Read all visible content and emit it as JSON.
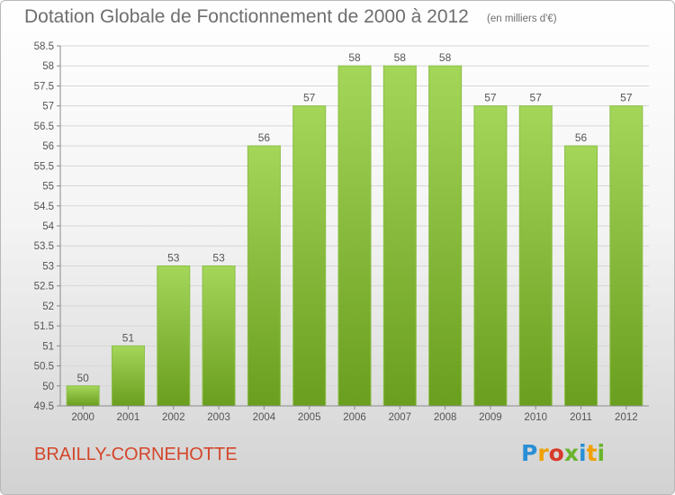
{
  "header": {
    "title": "Dotation Globale de Fonctionnement de 2000 à 2012",
    "unit": "(en milliers d'€)"
  },
  "footer": {
    "commune": "BRAILLY-CORNEHOTTE",
    "logo_text": "Proxiti"
  },
  "colors": {
    "bar_top": "#a4d65a",
    "bar_bottom": "#6a9e1e",
    "text": "#6e6e6e",
    "commune": "#d4462a"
  },
  "chart_data": {
    "type": "bar",
    "title": "Dotation Globale de Fonctionnement de 2000 à 2012",
    "subtitle": "(en milliers d'€)",
    "categories": [
      "2000",
      "2001",
      "2002",
      "2003",
      "2004",
      "2005",
      "2006",
      "2007",
      "2008",
      "2009",
      "2010",
      "2011",
      "2012"
    ],
    "values": [
      50,
      51,
      53,
      53,
      56,
      57,
      58,
      58,
      58,
      57,
      57,
      56,
      57
    ],
    "data_labels": [
      "50",
      "51",
      "53",
      "53",
      "56",
      "57",
      "58",
      "58",
      "58",
      "57",
      "57",
      "56",
      "57"
    ],
    "yticks": [
      "49.5",
      "50",
      "50.5",
      "51",
      "51.5",
      "52",
      "52.5",
      "53",
      "53.5",
      "54",
      "54.5",
      "55",
      "55.5",
      "56",
      "56.5",
      "57",
      "57.5",
      "58",
      "58.5"
    ],
    "ylim": [
      49.5,
      58.5
    ],
    "xlabel": "",
    "ylabel": "",
    "grid": true
  }
}
